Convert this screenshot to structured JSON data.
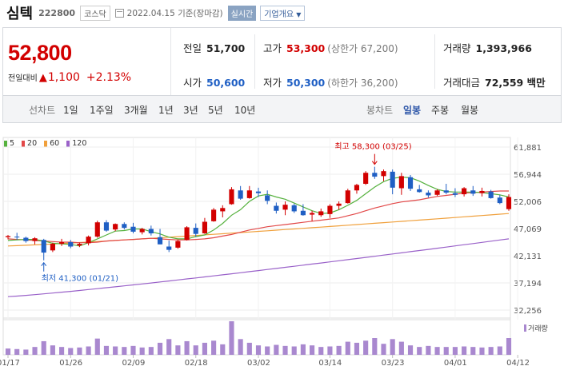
{
  "header": {
    "name": "심텍",
    "code": "222800",
    "market": "코스닥",
    "date": "2022.04.15 기준(장마감)",
    "realtime_label": "실시간",
    "company_info_label": "기업개요"
  },
  "price": {
    "current": "52,800",
    "change_label": "전일대비",
    "change": "1,100",
    "change_pct": "+2.13%",
    "up_color": "#d20000",
    "down_color": "#1f5fc4"
  },
  "stats": {
    "prev_label": "전일",
    "prev": "51,700",
    "high_label": "고가",
    "high": "53,300",
    "upper_limit": "(상한가 67,200)",
    "volume_label": "거래량",
    "volume": "1,393,966",
    "open_label": "시가",
    "open": "50,600",
    "low_label": "저가",
    "low": "50,300",
    "lower_limit": "(하한가 36,200)",
    "amount_label": "거래대금",
    "amount": "72,559 백만"
  },
  "period_bar": {
    "line_label": "선차트",
    "line_periods": [
      "1일",
      "1주일",
      "3개월",
      "1년",
      "3년",
      "5년",
      "10년"
    ],
    "candle_label": "봉차트",
    "candle_periods": [
      "일봉",
      "주봉",
      "월봉"
    ],
    "selected_candle": "일봉"
  },
  "chart_data": {
    "type": "candlestick",
    "legend": [
      {
        "name": "5",
        "color": "#55b13d"
      },
      {
        "name": "20",
        "color": "#e24848"
      },
      {
        "name": "60",
        "color": "#f0a03c"
      },
      {
        "name": "120",
        "color": "#9a62c9"
      }
    ],
    "y_ticks": [
      61881,
      56944,
      52006,
      47069,
      42131,
      37194,
      32256
    ],
    "y_tick_labels": [
      "61,881",
      "56,944",
      "52,006",
      "47,069",
      "42,131",
      "37,194",
      "32,256"
    ],
    "ylim": [
      32256,
      61881
    ],
    "x_tick_labels": [
      "01/17",
      "01/26",
      "02/09",
      "02/18",
      "03/02",
      "03/14",
      "03/23",
      "04/01",
      "04/12"
    ],
    "x_tick_index": [
      0,
      7,
      14,
      21,
      28,
      36,
      43,
      50,
      57
    ],
    "max_annotation": "최고 58,300 (03/25)",
    "min_annotation": "최저 41,300 (01/21)",
    "volume_label": "거래량",
    "candles": [
      [
        45500,
        45900,
        45100,
        45700
      ],
      [
        45600,
        46300,
        45000,
        45500
      ],
      [
        45400,
        45600,
        44500,
        44800
      ],
      [
        44800,
        45500,
        44200,
        45300
      ],
      [
        45000,
        45200,
        41300,
        42700
      ],
      [
        43100,
        44500,
        42800,
        44300
      ],
      [
        44300,
        45200,
        43900,
        44600
      ],
      [
        44600,
        45000,
        43500,
        43800
      ],
      [
        44000,
        44500,
        43700,
        44300
      ],
      [
        44400,
        45800,
        44000,
        45600
      ],
      [
        45600,
        48500,
        45400,
        48200
      ],
      [
        48200,
        48600,
        46500,
        46700
      ],
      [
        46900,
        48000,
        46600,
        47900
      ],
      [
        47900,
        48200,
        46900,
        47200
      ],
      [
        47400,
        48100,
        46200,
        46500
      ],
      [
        46400,
        47200,
        46000,
        47000
      ],
      [
        47000,
        47600,
        45800,
        46200
      ],
      [
        45500,
        47000,
        44200,
        44200
      ],
      [
        43800,
        44900,
        42800,
        43200
      ],
      [
        43600,
        45000,
        43400,
        44800
      ],
      [
        45000,
        47500,
        44900,
        47300
      ],
      [
        47200,
        48000,
        45600,
        46100
      ],
      [
        46200,
        49000,
        46100,
        48300
      ],
      [
        48400,
        50800,
        48300,
        50500
      ],
      [
        50200,
        51300,
        49100,
        50800
      ],
      [
        51500,
        54600,
        51400,
        54200
      ],
      [
        54000,
        54800,
        52300,
        52500
      ],
      [
        52600,
        54800,
        52500,
        54000
      ],
      [
        53800,
        54500,
        52800,
        53500
      ],
      [
        53100,
        54000,
        51500,
        52100
      ],
      [
        51200,
        51800,
        49800,
        50300
      ],
      [
        50500,
        52000,
        49500,
        51400
      ],
      [
        51300,
        51600,
        49900,
        50200
      ],
      [
        50300,
        51500,
        49400,
        49500
      ],
      [
        49600,
        50300,
        48400,
        49900
      ],
      [
        49500,
        50700,
        49200,
        50200
      ],
      [
        49700,
        51500,
        49000,
        51200
      ],
      [
        51200,
        52000,
        50500,
        51600
      ],
      [
        51700,
        54300,
        51600,
        54000
      ],
      [
        54000,
        55200,
        53400,
        55000
      ],
      [
        55200,
        57500,
        55000,
        57200
      ],
      [
        57200,
        58300,
        56100,
        56500
      ],
      [
        56600,
        57800,
        55700,
        57500
      ],
      [
        57400,
        57800,
        53300,
        54500
      ],
      [
        54400,
        57200,
        53200,
        56600
      ],
      [
        56400,
        56800,
        53900,
        54300
      ],
      [
        54200,
        55000,
        53600,
        53700
      ],
      [
        53600,
        54000,
        52700,
        53100
      ],
      [
        53200,
        54200,
        53000,
        54000
      ],
      [
        54000,
        55200,
        53300,
        53600
      ],
      [
        53500,
        54400,
        52800,
        53200
      ],
      [
        53300,
        54600,
        52900,
        54400
      ],
      [
        54000,
        54800,
        53000,
        53400
      ],
      [
        53500,
        54500,
        52900,
        53900
      ],
      [
        53800,
        54100,
        52500,
        52600
      ],
      [
        52700,
        53200,
        51500,
        51700
      ],
      [
        50600,
        53300,
        50300,
        52800
      ]
    ],
    "volumes": [
      120,
      110,
      100,
      150,
      260,
      180,
      150,
      130,
      140,
      160,
      310,
      170,
      160,
      150,
      170,
      140,
      150,
      230,
      300,
      180,
      260,
      180,
      230,
      270,
      200,
      640,
      300,
      230,
      180,
      160,
      190,
      170,
      160,
      200,
      180,
      150,
      160,
      170,
      250,
      230,
      270,
      320,
      210,
      300,
      250,
      180,
      150,
      170,
      150,
      150,
      150,
      160,
      150,
      140,
      150,
      160,
      320
    ],
    "ma5": [
      44900,
      45000,
      45100,
      45100,
      44800,
      44400,
      44300,
      44200,
      43900,
      44500,
      45200,
      45900,
      46600,
      46700,
      47000,
      47000,
      46500,
      46100,
      45500,
      45200,
      45200,
      45600,
      45900,
      46800,
      48000,
      49500,
      50500,
      52000,
      53000,
      53300,
      52800,
      52400,
      51700,
      51000,
      50300,
      49800,
      49900,
      50500,
      51300,
      52200,
      53400,
      54600,
      55600,
      56200,
      56400,
      56300,
      55700,
      54900,
      54200,
      53800,
      53700,
      53700,
      53700,
      53600,
      53400,
      53200,
      52800
    ],
    "ma20": [
      45200,
      45100,
      45000,
      44900,
      44800,
      44700,
      44600,
      44600,
      44500,
      44500,
      44600,
      44800,
      44900,
      45000,
      45100,
      45200,
      45300,
      45200,
      45100,
      45000,
      45000,
      45100,
      45200,
      45400,
      45700,
      46000,
      46400,
      46800,
      47100,
      47400,
      47600,
      47800,
      48000,
      48200,
      48400,
      48600,
      48800,
      49000,
      49400,
      49800,
      50300,
      50800,
      51200,
      51600,
      51900,
      52100,
      52300,
      52600,
      52900,
      53100,
      53300,
      53500,
      53600,
      53700,
      53800,
      53900,
      53900
    ],
    "ma60_start": 43900,
    "ma60_end": 49800,
    "ma120_start": 34700,
    "ma120_end": 45200
  }
}
